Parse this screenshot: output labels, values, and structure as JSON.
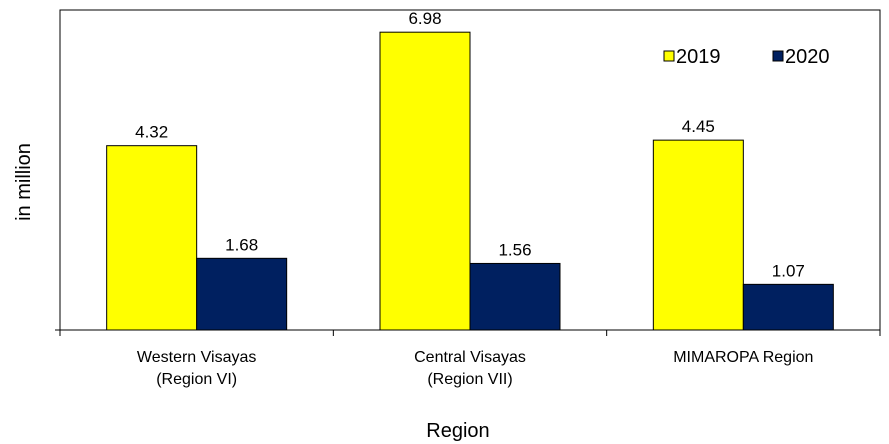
{
  "chart_data": {
    "type": "bar",
    "title": "",
    "xlabel": "Region",
    "ylabel": "in million",
    "categories": [
      [
        "Western Visayas",
        "(Region VI)"
      ],
      [
        "Central Visayas",
        "(Region VII)"
      ],
      [
        "MIMAROPA Region"
      ]
    ],
    "series": [
      {
        "name": "2019",
        "values": [
          4.32,
          6.98,
          4.45
        ],
        "labels": [
          "4.32",
          "6.98",
          "4.45"
        ],
        "color": "#ffff00"
      },
      {
        "name": "2020",
        "values": [
          1.68,
          1.56,
          1.07
        ],
        "labels": [
          "1.68",
          "1.56",
          "1.07"
        ],
        "color": "#002060"
      }
    ],
    "ylim": [
      0,
      7.5
    ],
    "grid": false,
    "legend_position": "top-right"
  }
}
